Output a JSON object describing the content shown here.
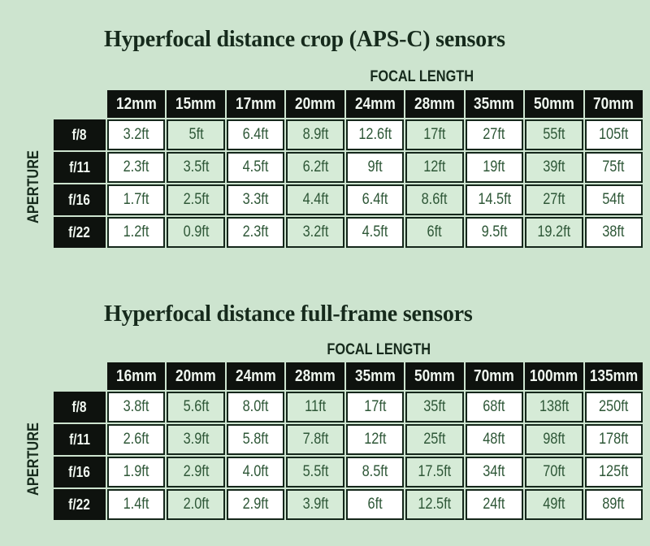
{
  "colors": {
    "background": "#cde4cf",
    "cell_green": "#d6ebd7",
    "cell_white": "#ffffff",
    "header_black": "#0e120e",
    "border_dark": "#15271b",
    "text_green": "#2e5737",
    "title_dark": "#162a1c",
    "header_text": "#f0f7f0"
  },
  "chart_data": [
    {
      "type": "table",
      "title": "Hyperfocal distance crop (APS-C) sensors",
      "top_axis_label": "FOCAL LENGTH",
      "left_axis_label": "APERTURE",
      "columns": [
        "12mm",
        "15mm",
        "17mm",
        "20mm",
        "24mm",
        "28mm",
        "35mm",
        "50mm",
        "70mm"
      ],
      "rows": [
        {
          "aperture": "f/8",
          "values": [
            "3.2ft",
            "5ft",
            "6.4ft",
            "8.9ft",
            "12.6ft",
            "17ft",
            "27ft",
            "55ft",
            "105ft"
          ]
        },
        {
          "aperture": "f/11",
          "values": [
            "2.3ft",
            "3.5ft",
            "4.5ft",
            "6.2ft",
            "9ft",
            "12ft",
            "19ft",
            "39ft",
            "75ft"
          ]
        },
        {
          "aperture": "f/16",
          "values": [
            "1.7ft",
            "2.5ft",
            "3.3ft",
            "4.4ft",
            "6.4ft",
            "8.6ft",
            "14.5ft",
            "27ft",
            "54ft"
          ]
        },
        {
          "aperture": "f/22",
          "values": [
            "1.2ft",
            "0.9ft",
            "2.3ft",
            "3.2ft",
            "4.5ft",
            "6ft",
            "9.5ft",
            "19.2ft",
            "38ft"
          ]
        }
      ]
    },
    {
      "type": "table",
      "title": "Hyperfocal distance full-frame sensors",
      "top_axis_label": "FOCAL LENGTH",
      "left_axis_label": "APERTURE",
      "columns": [
        "16mm",
        "20mm",
        "24mm",
        "28mm",
        "35mm",
        "50mm",
        "70mm",
        "100mm",
        "135mm"
      ],
      "rows": [
        {
          "aperture": "f/8",
          "values": [
            "3.8ft",
            "5.6ft",
            "8.0ft",
            "11ft",
            "17ft",
            "35ft",
            "68ft",
            "138ft",
            "250ft"
          ]
        },
        {
          "aperture": "f/11",
          "values": [
            "2.6ft",
            "3.9ft",
            "5.8ft",
            "7.8ft",
            "12ft",
            "25ft",
            "48ft",
            "98ft",
            "178ft"
          ]
        },
        {
          "aperture": "f/16",
          "values": [
            "1.9ft",
            "2.9ft",
            "4.0ft",
            "5.5ft",
            "8.5ft",
            "17.5ft",
            "34ft",
            "70ft",
            "125ft"
          ]
        },
        {
          "aperture": "f/22",
          "values": [
            "1.4ft",
            "2.0ft",
            "2.9ft",
            "3.9ft",
            "6ft",
            "12.5ft",
            "24ft",
            "49ft",
            "89ft"
          ]
        }
      ]
    }
  ]
}
